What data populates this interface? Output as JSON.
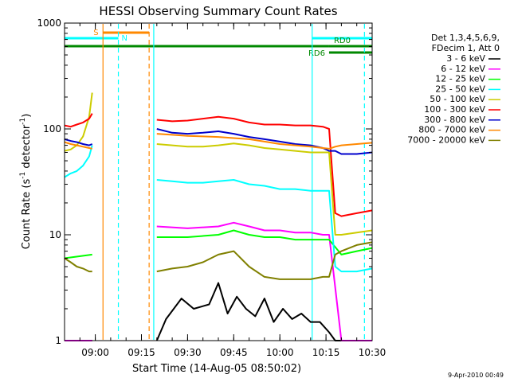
{
  "chart_data": {
    "type": "line",
    "title": "HESSI Observing Summary Count Rates",
    "xlabel": "Start Time (14-Aug-05 08:50:02)",
    "ylabel_main": "Count Rate (s",
    "ylabel_sup1": "-1",
    "ylabel_mid": " detector",
    "ylabel_sup2": "-1",
    "ylabel_end": ")",
    "yscale": "log",
    "ylim": [
      1,
      1000
    ],
    "xlim_minutes": [
      0,
      100
    ],
    "x_ticks": [
      {
        "minute": 10,
        "label": "09:00"
      },
      {
        "minute": 25,
        "label": "09:15"
      },
      {
        "minute": 40,
        "label": "09:30"
      },
      {
        "minute": 55,
        "label": "09:45"
      },
      {
        "minute": 70,
        "label": "10:00"
      },
      {
        "minute": 85,
        "label": "10:15"
      },
      {
        "minute": 100,
        "label": "10:30"
      }
    ],
    "y_ticks": [
      {
        "value": 1,
        "label": "1"
      },
      {
        "value": 10,
        "label": "10"
      },
      {
        "value": 100,
        "label": "100"
      },
      {
        "value": 1000,
        "label": "1000"
      }
    ],
    "legend": {
      "placement": "right",
      "header": [
        "Det 1,3,4,5,6,9,",
        "FDecim 1, Att 0"
      ]
    },
    "series": [
      {
        "name": "3 - 6 keV",
        "color": "#000000",
        "x": [
          0,
          9,
          12,
          28,
          30,
          33,
          38,
          42,
          47,
          50,
          53,
          56,
          59,
          62,
          65,
          68,
          71,
          74,
          77,
          80,
          83,
          86,
          88,
          90,
          92,
          95,
          98,
          100
        ],
        "y": [
          1.0,
          1.0,
          null,
          null,
          1.0,
          1.6,
          2.5,
          2.0,
          2.2,
          3.5,
          1.8,
          2.6,
          2.0,
          1.7,
          2.5,
          1.5,
          2.0,
          1.6,
          1.8,
          1.5,
          1.5,
          1.2,
          1.0,
          1.0,
          1.0,
          1.0,
          1.0,
          1.0
        ]
      },
      {
        "name": "6 - 12 keV",
        "color": "#ff00ff",
        "x": [
          0,
          9,
          12,
          28,
          30,
          40,
          50,
          55,
          60,
          65,
          70,
          75,
          80,
          84,
          86,
          90,
          95,
          100
        ],
        "y": [
          1.0,
          1.0,
          null,
          null,
          12.0,
          11.5,
          12.0,
          13.0,
          12.0,
          11.0,
          11.0,
          10.5,
          10.5,
          10.0,
          10.0,
          1.0,
          1.0,
          1.0
        ]
      },
      {
        "name": "12 - 25 keV",
        "color": "#00ff00",
        "x": [
          0,
          9,
          12,
          28,
          30,
          40,
          50,
          55,
          60,
          65,
          70,
          75,
          80,
          84,
          86,
          90,
          95,
          100
        ],
        "y": [
          6.0,
          6.5,
          null,
          null,
          9.5,
          9.5,
          10.0,
          11.0,
          10.0,
          9.5,
          9.5,
          9.0,
          9.0,
          9.0,
          9.0,
          6.5,
          7.0,
          7.5
        ]
      },
      {
        "name": "25 - 50 keV",
        "color": "#00ffff",
        "x": [
          0,
          2,
          4,
          6,
          8,
          9,
          12,
          28,
          30,
          35,
          40,
          45,
          50,
          55,
          60,
          65,
          70,
          75,
          80,
          84,
          86,
          88,
          90,
          95,
          100
        ],
        "y": [
          35.0,
          38.0,
          40.0,
          45.0,
          55.0,
          70.0,
          null,
          null,
          33.0,
          32.0,
          31.0,
          31.0,
          32.0,
          33.0,
          30.0,
          29.0,
          27.0,
          27.0,
          26.0,
          26.0,
          26.0,
          5.0,
          4.5,
          4.5,
          4.8
        ]
      },
      {
        "name": "50 - 100 keV",
        "color": "#cccc00",
        "x": [
          0,
          2,
          4,
          6,
          8,
          9,
          12,
          28,
          30,
          35,
          40,
          45,
          50,
          55,
          60,
          65,
          70,
          75,
          80,
          84,
          86,
          88,
          90,
          95,
          100
        ],
        "y": [
          62.0,
          64.0,
          70.0,
          85.0,
          130.0,
          220.0,
          null,
          null,
          72.0,
          70.0,
          68.0,
          68.0,
          70.0,
          73.0,
          70.0,
          66.0,
          64.0,
          62.0,
          60.0,
          60.0,
          60.0,
          10.0,
          10.0,
          10.5,
          11.0
        ]
      },
      {
        "name": "100 - 300 keV",
        "color": "#ff0000",
        "x": [
          0,
          2,
          4,
          6,
          8,
          9,
          12,
          28,
          30,
          35,
          40,
          45,
          50,
          55,
          60,
          65,
          70,
          75,
          80,
          84,
          86,
          88,
          90,
          95,
          100
        ],
        "y": [
          108.0,
          105.0,
          110.0,
          115.0,
          125.0,
          140.0,
          null,
          null,
          122.0,
          118.0,
          120.0,
          125.0,
          130.0,
          125.0,
          115.0,
          110.0,
          110.0,
          108.0,
          108.0,
          105.0,
          100.0,
          16.0,
          15.0,
          16.0,
          17.0
        ]
      },
      {
        "name": "300 - 800 keV",
        "color": "#0000cc",
        "x": [
          0,
          2,
          4,
          6,
          8,
          9,
          12,
          28,
          30,
          35,
          40,
          45,
          50,
          55,
          60,
          65,
          70,
          75,
          80,
          84,
          86,
          88,
          90,
          95,
          100
        ],
        "y": [
          80.0,
          77.0,
          75.0,
          72.0,
          70.0,
          72.0,
          null,
          null,
          100.0,
          92.0,
          90.0,
          92.0,
          95.0,
          90.0,
          84.0,
          80.0,
          76.0,
          72.0,
          70.0,
          66.0,
          62.0,
          62.0,
          58.0,
          58.0,
          60.0
        ]
      },
      {
        "name": "800 - 7000 keV",
        "color": "#ff8800",
        "x": [
          0,
          2,
          4,
          6,
          8,
          9,
          12,
          28,
          30,
          35,
          40,
          45,
          50,
          55,
          60,
          65,
          70,
          75,
          80,
          84,
          86,
          88,
          90,
          95,
          100
        ],
        "y": [
          75.0,
          72.0,
          70.0,
          68.0,
          66.0,
          65.0,
          null,
          null,
          90.0,
          88.0,
          86.0,
          85.0,
          84.0,
          82.0,
          80.0,
          76.0,
          72.0,
          70.0,
          68.0,
          66.0,
          65.0,
          68.0,
          70.0,
          72.0,
          74.0
        ]
      },
      {
        "name": "7000 - 20000 keV",
        "color": "#808000",
        "x": [
          0,
          2,
          4,
          6,
          8,
          9,
          12,
          28,
          30,
          35,
          40,
          45,
          50,
          55,
          60,
          65,
          70,
          75,
          80,
          84,
          86,
          88,
          90,
          95,
          100
        ],
        "y": [
          6.0,
          5.5,
          5.0,
          4.8,
          4.5,
          4.5,
          null,
          null,
          4.5,
          4.8,
          5.0,
          5.5,
          6.5,
          7.0,
          5.0,
          4.0,
          3.8,
          3.8,
          3.8,
          4.0,
          4.0,
          6.5,
          7.0,
          8.0,
          8.5
        ]
      }
    ],
    "flag_bars": [
      {
        "label": "S",
        "color": "#ff8800",
        "start": 12.5,
        "end": 27.5
      },
      {
        "label": "N",
        "color": "#00ffff",
        "start": 0,
        "end": 17.5
      },
      {
        "label": "",
        "color": "#00ffff",
        "start": 80.5,
        "end": 100
      },
      {
        "label": "RD0",
        "color": "#008800",
        "start": 86,
        "end": 100
      },
      {
        "label": "",
        "color": "#008800",
        "start": 0,
        "end": 86
      },
      {
        "label": "RD6",
        "color": "#008800",
        "start": 86,
        "end": 100
      }
    ],
    "vertical_markers": [
      {
        "color": "#ff8800",
        "style": "solid",
        "minute": 12.5
      },
      {
        "color": "#00ffff",
        "style": "dashed",
        "minute": 17.5
      },
      {
        "color": "#ff8800",
        "style": "dashed",
        "minute": 27.5
      },
      {
        "color": "#00ffff",
        "style": "solid",
        "minute": 29.0
      },
      {
        "color": "#00ffff",
        "style": "solid",
        "minute": 80.5
      },
      {
        "color": "#00ffff",
        "style": "dashed",
        "minute": 97.5
      }
    ],
    "footer_date": "9-Apr-2010 00:49"
  }
}
